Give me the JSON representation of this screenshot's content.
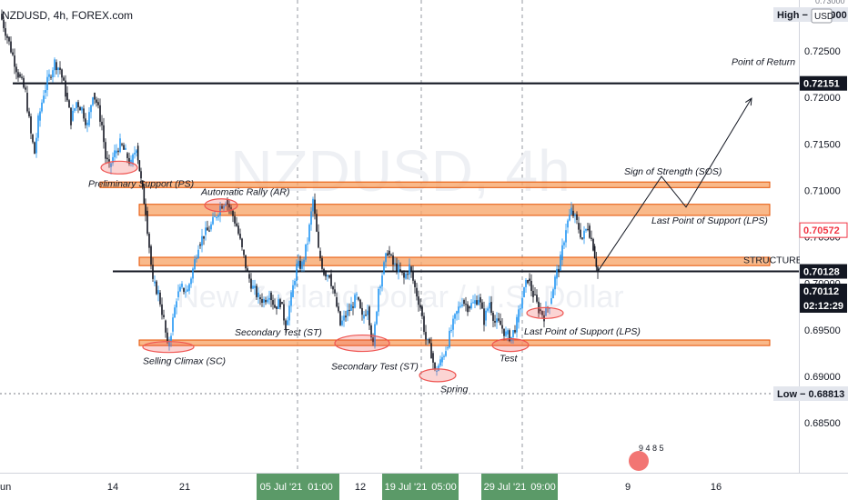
{
  "header": {
    "title": "NZDUSD, 4h, FOREX.com"
  },
  "watermark": {
    "symbol": "NZDUSD, 4h",
    "description": "New Zealand Dollar / U.S. Dollar"
  },
  "currency_badge": "USD",
  "chart_data": {
    "type": "candlestick",
    "symbol": "NZDUSD",
    "timeframe": "4h",
    "y_axis": {
      "range": [
        0.681,
        0.734
      ],
      "ticks": [
        "0.72500",
        "0.72000",
        "0.71500",
        "0.71000",
        "0.70500",
        "0.70000",
        "0.69500",
        "0.69000",
        "0.68500"
      ],
      "tick_values": [
        0.725,
        0.72,
        0.715,
        0.71,
        0.705,
        0.7,
        0.695,
        0.69,
        0.685
      ],
      "top_partial_label": "0.73000"
    },
    "price_labels": [
      {
        "name": "high",
        "text": "High − 0.73000",
        "value": 0.73,
        "bg": "#e3e6ed",
        "fg": "#131722"
      },
      {
        "name": "point-of-return",
        "text": "0.72151",
        "value": 0.72151,
        "bg": "#131722",
        "fg": "#ffffff"
      },
      {
        "name": "resistance",
        "text": "0.70572",
        "value": 0.70572,
        "bg": "#ffffff",
        "fg": "#f23645"
      },
      {
        "name": "structure",
        "text": "0.70128",
        "value": 0.70128,
        "bg": "#131722",
        "fg": "#ffffff"
      },
      {
        "name": "last-price",
        "text": "0.70112",
        "value": 0.70112,
        "bg": "#131722",
        "fg": "#ffffff"
      },
      {
        "name": "countdown",
        "text": "02:12:29",
        "value": 0.6992,
        "bg": "#131722",
        "fg": "#ffffff"
      },
      {
        "name": "low",
        "text": "Low − 0.68813",
        "value": 0.68813,
        "bg": "#e3e6ed",
        "fg": "#131722"
      }
    ],
    "x_axis": {
      "labels": [
        "un",
        "14",
        "21",
        "05 Jul '21",
        "01:00",
        "12",
        "19 Jul '21",
        "05:00",
        "29 Jul '21",
        "09:00",
        "9",
        "16"
      ],
      "highlighted": [
        "05 Jul '21",
        "01:00",
        "19 Jul '21",
        "05:00",
        "29 Jul '21",
        "09:00"
      ]
    },
    "zones": [
      {
        "name": "upper-resistance-zone",
        "low": 0.7103,
        "high": 0.7109,
        "start": 110,
        "end": 846
      },
      {
        "name": "ar-zone",
        "low": 0.7073,
        "high": 0.7085,
        "start": 153,
        "end": 846
      },
      {
        "name": "mid-zone",
        "low": 0.7019,
        "high": 0.7028,
        "start": 153,
        "end": 846
      },
      {
        "name": "support-zone",
        "low": 0.6933,
        "high": 0.6939,
        "start": 153,
        "end": 846
      }
    ],
    "lines": [
      {
        "name": "point-of-return-line",
        "value": 0.72151,
        "start": 14,
        "end": 878,
        "dashed": false,
        "width": 2.2
      },
      {
        "name": "structure-line",
        "value": 0.70128,
        "start": 124,
        "end": 878,
        "dashed": false,
        "width": 2
      },
      {
        "name": "low-line",
        "value": 0.68813,
        "start": 0,
        "end": 878,
        "dashed": true,
        "width": 1
      }
    ],
    "annotations": [
      {
        "text": "Point of Return",
        "x": 804,
        "value": 0.7235
      },
      {
        "text": "Preliminary Support (PS)",
        "x": 97,
        "value": 0.7104
      },
      {
        "text": "Automatic Rally (AR)",
        "x": 221,
        "value": 0.7095
      },
      {
        "text": "Sign of Strength (SOS)",
        "x": 686,
        "value": 0.7117
      },
      {
        "text": "Last Point of Support (LPS)",
        "x": 716,
        "value": 0.7064
      },
      {
        "text": "STRUCTURE",
        "x": 817,
        "value": 0.70215
      },
      {
        "text": "Secondary Test (ST)",
        "x": 258,
        "value": 0.6944
      },
      {
        "text": "Selling Climax (SC)",
        "x": 157,
        "value": 0.6913
      },
      {
        "text": "Secondary Test (ST)",
        "x": 364,
        "value": 0.6907
      },
      {
        "text": "Last Point of Support (LPS)",
        "x": 576,
        "value": 0.6945
      },
      {
        "text": "Test",
        "x": 549,
        "value": 0.6916
      },
      {
        "text": "Spring",
        "x": 484,
        "value": 0.6883
      }
    ],
    "circles": [
      {
        "name": "ps-circle",
        "x": 131,
        "value": 0.71245,
        "rx": 20,
        "ry": 7
      },
      {
        "name": "ar-circle",
        "x": 243,
        "value": 0.7084,
        "rx": 18,
        "ry": 7
      },
      {
        "name": "sc-circle",
        "x": 185,
        "value": 0.69315,
        "rx": 28,
        "ry": 6
      },
      {
        "name": "st-circle",
        "x": 398,
        "value": 0.69355,
        "rx": 30,
        "ry": 9
      },
      {
        "name": "spring-circle",
        "x": 481,
        "value": 0.6901,
        "rx": 20,
        "ry": 7
      },
      {
        "name": "test-circle",
        "x": 561,
        "value": 0.69335,
        "rx": 20,
        "ry": 7
      },
      {
        "name": "lps-circle",
        "x": 599,
        "value": 0.6968,
        "rx": 20,
        "ry": 6
      }
    ],
    "projection_path": [
      {
        "x": 657,
        "value": 0.70128
      },
      {
        "x": 727,
        "value": 0.7115
      },
      {
        "x": 754,
        "value": 0.7082
      },
      {
        "x": 826,
        "value": 0.7199
      }
    ],
    "grid": {
      "vertical_dashed_at": [
        327,
        463,
        574
      ]
    },
    "colors": {
      "up": "#2196f3",
      "down": "#131722",
      "zone_fill": "#f7a76d",
      "zone_stroke": "#e65100",
      "circle": "#ef5350"
    },
    "candles_close_path": [
      [
        0,
        0.729
      ],
      [
        8,
        0.7265
      ],
      [
        14,
        0.7245
      ],
      [
        20,
        0.7225
      ],
      [
        28,
        0.7205
      ],
      [
        34,
        0.716
      ],
      [
        38,
        0.714
      ],
      [
        42,
        0.7175
      ],
      [
        48,
        0.7205
      ],
      [
        54,
        0.7222
      ],
      [
        60,
        0.7238
      ],
      [
        66,
        0.723
      ],
      [
        72,
        0.7205
      ],
      [
        78,
        0.7175
      ],
      [
        84,
        0.7195
      ],
      [
        90,
        0.7188
      ],
      [
        96,
        0.717
      ],
      [
        102,
        0.7205
      ],
      [
        106,
        0.7195
      ],
      [
        112,
        0.717
      ],
      [
        116,
        0.7135
      ],
      [
        120,
        0.7125
      ],
      [
        126,
        0.714
      ],
      [
        132,
        0.715
      ],
      [
        138,
        0.714
      ],
      [
        144,
        0.7128
      ],
      [
        150,
        0.7148
      ],
      [
        155,
        0.711
      ],
      [
        160,
        0.7078
      ],
      [
        164,
        0.704
      ],
      [
        168,
        0.7
      ],
      [
        174,
        0.699
      ],
      [
        180,
        0.696
      ],
      [
        184,
        0.6932
      ],
      [
        188,
        0.6948
      ],
      [
        194,
        0.6985
      ],
      [
        200,
        0.6995
      ],
      [
        206,
        0.6992
      ],
      [
        212,
        0.7015
      ],
      [
        218,
        0.7042
      ],
      [
        224,
        0.7052
      ],
      [
        230,
        0.7058
      ],
      [
        236,
        0.707
      ],
      [
        242,
        0.7083
      ],
      [
        248,
        0.709
      ],
      [
        254,
        0.7078
      ],
      [
        260,
        0.7062
      ],
      [
        266,
        0.7036
      ],
      [
        272,
        0.701
      ],
      [
        278,
        0.6995
      ],
      [
        284,
        0.6985
      ],
      [
        290,
        0.6982
      ],
      [
        296,
        0.699
      ],
      [
        302,
        0.6975
      ],
      [
        308,
        0.698
      ],
      [
        314,
        0.6955
      ],
      [
        320,
        0.6985
      ],
      [
        326,
        0.7018
      ],
      [
        332,
        0.702
      ],
      [
        338,
        0.7045
      ],
      [
        344,
        0.709
      ],
      [
        350,
        0.7035
      ],
      [
        356,
        0.7012
      ],
      [
        362,
        0.701
      ],
      [
        368,
        0.6985
      ],
      [
        374,
        0.6955
      ],
      [
        380,
        0.6965
      ],
      [
        386,
        0.6975
      ],
      [
        392,
        0.6985
      ],
      [
        398,
        0.6962
      ],
      [
        404,
        0.6975
      ],
      [
        410,
        0.6932
      ],
      [
        416,
        0.6995
      ],
      [
        420,
        0.701
      ],
      [
        426,
        0.7035
      ],
      [
        432,
        0.702
      ],
      [
        438,
        0.7015
      ],
      [
        444,
        0.7005
      ],
      [
        450,
        0.7018
      ],
      [
        456,
        0.6995
      ],
      [
        462,
        0.6975
      ],
      [
        468,
        0.694
      ],
      [
        474,
        0.6925
      ],
      [
        478,
        0.6905
      ],
      [
        484,
        0.6915
      ],
      [
        490,
        0.693
      ],
      [
        496,
        0.695
      ],
      [
        502,
        0.6968
      ],
      [
        508,
        0.6982
      ],
      [
        514,
        0.6975
      ],
      [
        520,
        0.6978
      ],
      [
        526,
        0.6985
      ],
      [
        532,
        0.696
      ],
      [
        538,
        0.698
      ],
      [
        544,
        0.6958
      ],
      [
        550,
        0.6955
      ],
      [
        556,
        0.6945
      ],
      [
        562,
        0.6942
      ],
      [
        568,
        0.6958
      ],
      [
        574,
        0.6985
      ],
      [
        580,
        0.7005
      ],
      [
        586,
        0.6988
      ],
      [
        592,
        0.6972
      ],
      [
        598,
        0.6965
      ],
      [
        604,
        0.6978
      ],
      [
        610,
        0.7005
      ],
      [
        616,
        0.7025
      ],
      [
        622,
        0.706
      ],
      [
        628,
        0.7078
      ],
      [
        634,
        0.7065
      ],
      [
        640,
        0.7048
      ],
      [
        646,
        0.7062
      ],
      [
        652,
        0.704
      ],
      [
        657,
        0.7012
      ]
    ]
  }
}
